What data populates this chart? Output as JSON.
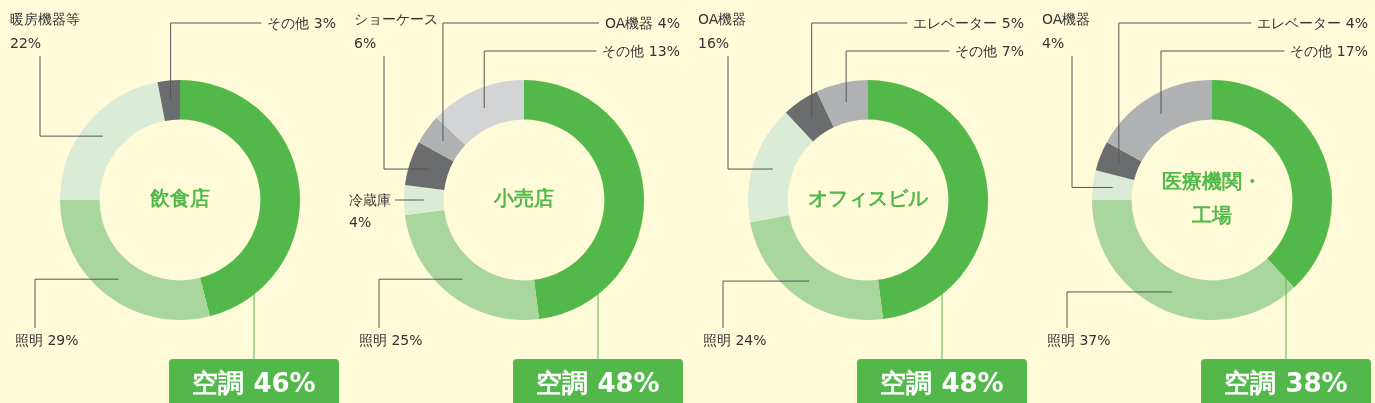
{
  "chart_data": [
    {
      "type": "donut",
      "title": "飲食店",
      "categories": [
        "空調",
        "照明",
        "暖房機器等",
        "その他"
      ],
      "values": [
        46,
        29,
        22,
        3
      ],
      "value_labels": [
        "46%",
        "29%",
        "22%",
        "3%"
      ],
      "colors": [
        "#52b84a",
        "#a9d69c",
        "#dbecd6",
        "#6b6c6e"
      ]
    },
    {
      "type": "donut",
      "title": "小売店",
      "categories": [
        "空調",
        "照明",
        "冷蔵庫",
        "ショーケース",
        "OA機器",
        "その他"
      ],
      "values": [
        48,
        25,
        4,
        6,
        4,
        13
      ],
      "value_labels": [
        "48%",
        "25%",
        "4%",
        "6%",
        "4%",
        "13%"
      ],
      "colors": [
        "#52b84a",
        "#a9d69c",
        "#dbecd6",
        "#6b6c6e",
        "#b0b1b3",
        "#d3d4d6"
      ]
    },
    {
      "type": "donut",
      "title": "オフィスビル",
      "categories": [
        "空調",
        "照明",
        "OA機器",
        "エレベーター",
        "その他"
      ],
      "values": [
        48,
        24,
        16,
        5,
        7
      ],
      "value_labels": [
        "48%",
        "24%",
        "16%",
        "5%",
        "7%"
      ],
      "colors": [
        "#52b84a",
        "#a9d69c",
        "#dbecd6",
        "#6b6c6e",
        "#b0b1b3"
      ]
    },
    {
      "type": "donut",
      "title": "医療機関・工場",
      "categories": [
        "空調",
        "照明",
        "OA機器",
        "エレベーター",
        "その他"
      ],
      "values": [
        38,
        37,
        4,
        4,
        17
      ],
      "value_labels": [
        "38%",
        "37%",
        "4%",
        "4%",
        "17%"
      ],
      "colors": [
        "#52b84a",
        "#a9d69c",
        "#dbecd6",
        "#6b6c6e",
        "#b0b1b3"
      ]
    }
  ]
}
